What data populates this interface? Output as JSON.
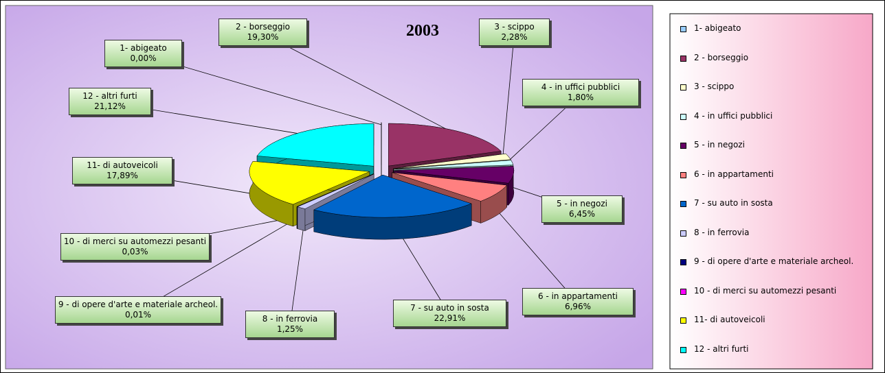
{
  "chart_data": {
    "type": "pie",
    "title": "2003",
    "categories": [
      "1- abigeato",
      "2 - borseggio",
      "3 - scippo",
      "4 - in uffici pubblici",
      "5 - in negozi",
      "6 - in appartamenti",
      "7 - su auto in sosta",
      "8 - in ferrovia",
      "9 - di opere d'arte e materiale archeol.",
      "10 - di merci su automezzi pesanti",
      "11- di autoveicoli",
      "12 - altri furti"
    ],
    "values": [
      0,
      19.3,
      2.28,
      1.8,
      6.45,
      6.96,
      22.91,
      1.25,
      0.01,
      0.03,
      17.89,
      21.12
    ],
    "value_labels": [
      "0,00%",
      "19,30%",
      "2,28%",
      "1,80%",
      "6,45%",
      "6,96%",
      "22,91%",
      "1,25%",
      "0,01%",
      "0,03%",
      "17,89%",
      "21,12%"
    ],
    "colors": [
      "#99ccff",
      "#993366",
      "#ffffcc",
      "#ccffff",
      "#660066",
      "#ff8080",
      "#0066cc",
      "#ccccff",
      "#000080",
      "#ff00ff",
      "#ffff00",
      "#00ffff"
    ],
    "legend": "right"
  }
}
